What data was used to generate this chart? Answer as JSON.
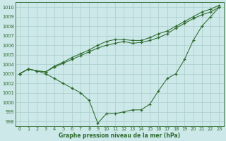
{
  "xlabel": "Graphe pression niveau de la mer (hPa)",
  "ylim": [
    997.5,
    1010.5
  ],
  "xlim": [
    -0.5,
    23.5
  ],
  "yticks": [
    998,
    999,
    1000,
    1001,
    1002,
    1003,
    1004,
    1005,
    1006,
    1007,
    1008,
    1009,
    1010
  ],
  "xticks": [
    0,
    1,
    2,
    3,
    4,
    5,
    6,
    7,
    8,
    9,
    10,
    11,
    12,
    13,
    14,
    15,
    16,
    17,
    18,
    19,
    20,
    21,
    22,
    23
  ],
  "bg_color": "#cce8e8",
  "line_color": "#2d6a2d",
  "grid_color": "#aacece",
  "line1": [
    1003.0,
    1003.5,
    1003.3,
    1003.2,
    1003.8,
    1004.2,
    1004.7,
    1005.1,
    1005.5,
    1006.0,
    1006.4,
    1006.6,
    1006.6,
    1006.5,
    1006.5,
    1006.8,
    1007.2,
    1007.5,
    1008.0,
    1008.5,
    1009.0,
    1009.5,
    1009.8,
    1010.2
  ],
  "line2": [
    1003.0,
    1003.5,
    1003.3,
    1003.2,
    1003.7,
    1004.1,
    1004.5,
    1004.9,
    1005.3,
    1005.7,
    1006.0,
    1006.2,
    1006.4,
    1006.2,
    1006.3,
    1006.5,
    1006.8,
    1007.2,
    1007.8,
    1008.3,
    1008.8,
    1009.2,
    1009.5,
    1010.0
  ],
  "line3": [
    1003.0,
    1003.5,
    1003.3,
    1003.0,
    1002.5,
    1002.0,
    1001.5,
    1001.0,
    1000.2,
    997.8,
    998.8,
    998.8,
    999.0,
    999.2,
    999.2,
    999.8,
    1001.2,
    1002.5,
    1003.0,
    1004.5,
    1006.5,
    1008.0,
    1009.0,
    1010.0
  ]
}
